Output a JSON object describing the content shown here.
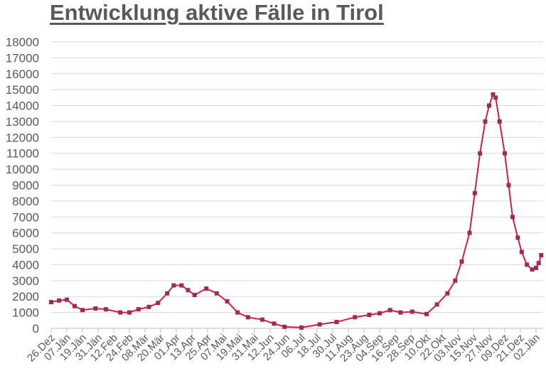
{
  "chart_data": {
    "type": "line",
    "title": "Entwicklung aktive Fälle in Tirol",
    "xlabel": "",
    "ylabel": "",
    "ylim": [
      0,
      18000
    ],
    "yticks": [
      0,
      1000,
      2000,
      3000,
      4000,
      5000,
      6000,
      7000,
      8000,
      9000,
      10000,
      11000,
      12000,
      13000,
      14000,
      15000,
      16000,
      17000,
      18000
    ],
    "grid": true,
    "legend": "none",
    "xtick_labels": [
      "26.Dez",
      "07.Jän",
      "19.Jän",
      "31.Jän",
      "12.Feb",
      "24.Feb",
      "08.Mär",
      "20.Mär",
      "01.Apr",
      "13.Apr",
      "25.Apr",
      "07.Mai",
      "19.Mai",
      "31.Mai",
      "12.Jun",
      "24.Jun",
      "06.Jul",
      "18.Jul",
      "30.Jul",
      "11.Aug",
      "23.Aug",
      "04.Sep",
      "16.Sep",
      "28.Sep",
      "10.Okt",
      "22.Okt",
      "03.Nov",
      "15.Nov",
      "27.Nov",
      "09.Dez",
      "21.Dez",
      "02.Jän"
    ],
    "colors": {
      "line": "#d0203a",
      "marker": "#9e2a5a",
      "grid": "#d9d9d9",
      "text": "#595959"
    },
    "series": [
      {
        "x": [
          "2019-12-26",
          "2020-01-01",
          "2020-01-07",
          "2020-01-13",
          "2020-01-19",
          "2020-01-29",
          "2020-02-06",
          "2020-02-17",
          "2020-02-24",
          "2020-03-02",
          "2020-03-10",
          "2020-03-17",
          "2020-03-24",
          "2020-03-29",
          "2020-04-04",
          "2020-04-09",
          "2020-04-14",
          "2020-04-23",
          "2020-05-01",
          "2020-05-09",
          "2020-05-17",
          "2020-05-25",
          "2020-06-05",
          "2020-06-14",
          "2020-06-22",
          "2020-07-05",
          "2020-07-19",
          "2020-08-01",
          "2020-08-15",
          "2020-08-26",
          "2020-09-03",
          "2020-09-11",
          "2020-09-19",
          "2020-09-28",
          "2020-10-09",
          "2020-10-17",
          "2020-10-25",
          "2020-10-31",
          "2020-11-05",
          "2020-11-11",
          "2020-11-15",
          "2020-11-19",
          "2020-11-23",
          "2020-11-26",
          "2020-11-29",
          "2020-12-01",
          "2020-12-04",
          "2020-12-08",
          "2020-12-11",
          "2020-12-14",
          "2020-12-18",
          "2020-12-21",
          "2020-12-25",
          "2020-12-29",
          "2021-01-01",
          "2021-01-03",
          "2021-01-05"
        ],
        "y": [
          1650,
          1750,
          1800,
          1400,
          1150,
          1250,
          1200,
          1000,
          1000,
          1200,
          1350,
          1600,
          2200,
          2700,
          2700,
          2400,
          2100,
          2500,
          2200,
          1700,
          1000,
          700,
          550,
          300,
          100,
          50,
          250,
          400,
          700,
          850,
          950,
          1150,
          1000,
          1050,
          900,
          1500,
          2200,
          3000,
          4200,
          6000,
          8500,
          11000,
          13000,
          14000,
          14700,
          14500,
          13000,
          11000,
          9000,
          7000,
          5700,
          4800,
          4000,
          3700,
          3800,
          4100,
          4600
        ]
      }
    ]
  }
}
